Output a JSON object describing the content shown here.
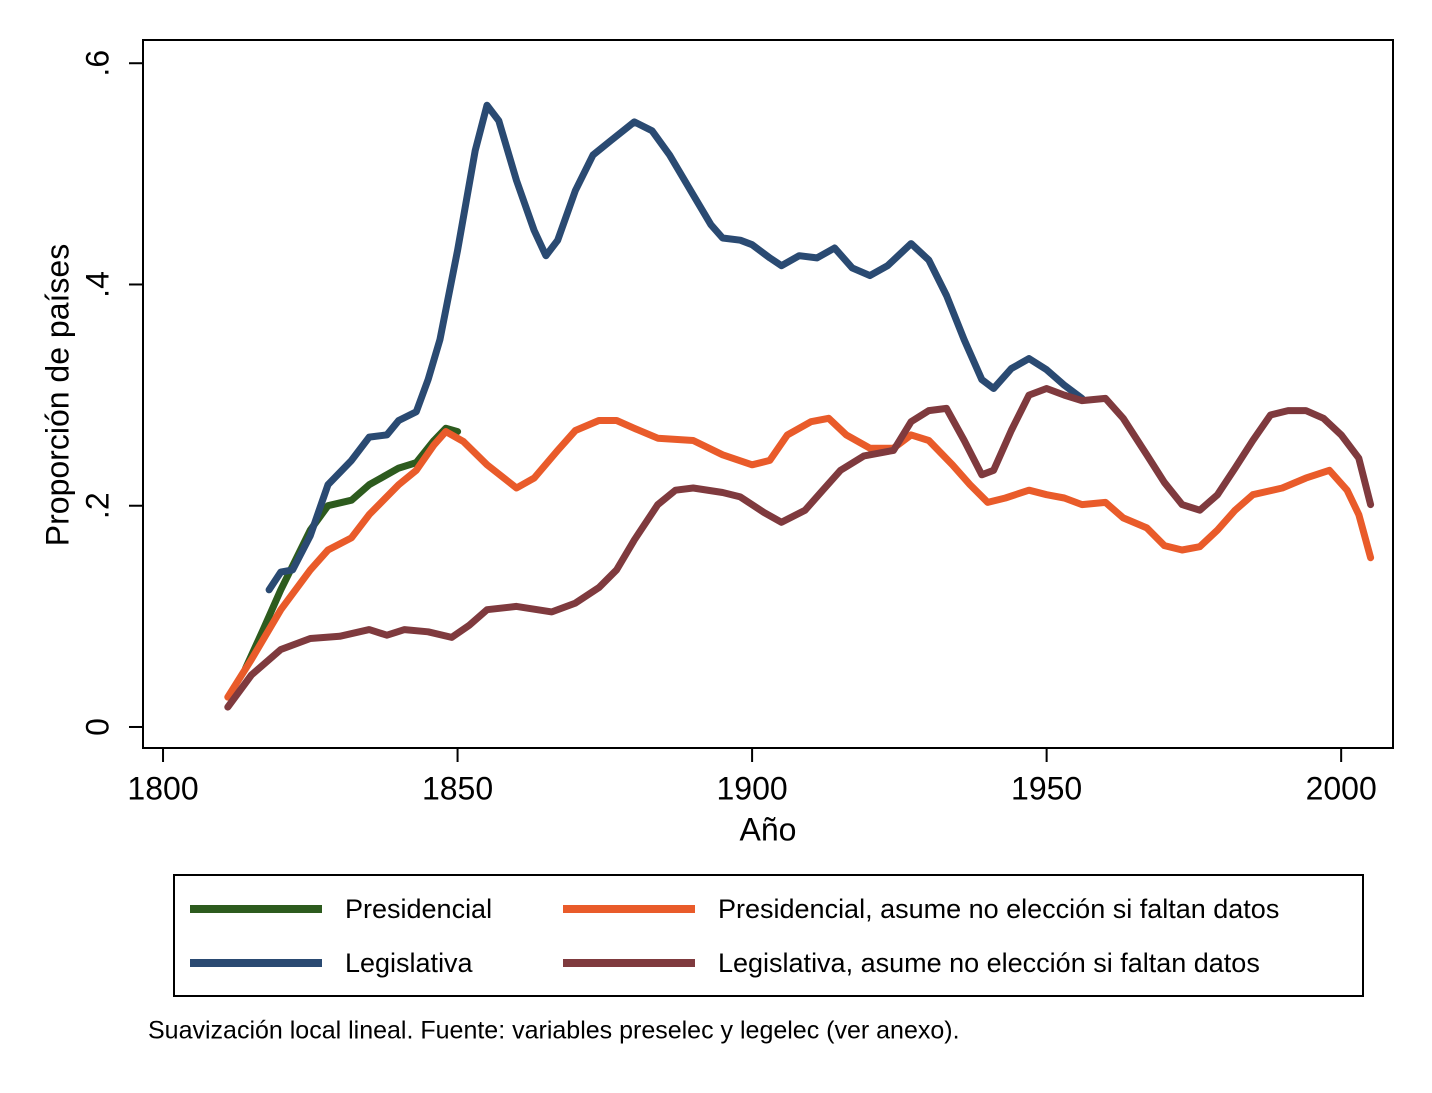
{
  "chart_data": {
    "type": "line",
    "xlabel": "Año",
    "ylabel": "Proporción de países",
    "note": "Suavización local lineal. Fuente: variables preselec y legelec (ver anexo).",
    "xlim": [
      1796.6,
      2008.8
    ],
    "ylim": [
      -0.019,
      0.621
    ],
    "xticks": [
      1800,
      1850,
      1900,
      1950,
      2000
    ],
    "yticks": [
      {
        "value": 0,
        "label": "0"
      },
      {
        "value": 0.2,
        "label": ".2"
      },
      {
        "value": 0.4,
        "label": ".4"
      },
      {
        "value": 0.6,
        "label": ".6"
      }
    ],
    "series": [
      {
        "name": "Presidencial",
        "color": "#2d5b1e",
        "x": [
          1814,
          1817,
          1820,
          1825,
          1828,
          1832,
          1835,
          1840,
          1843,
          1846,
          1848,
          1850
        ],
        "values": [
          0.053,
          0.088,
          0.124,
          0.178,
          0.2,
          0.205,
          0.219,
          0.234,
          0.239,
          0.259,
          0.27,
          0.267
        ]
      },
      {
        "name": "Legislativa",
        "color": "#2a4a72",
        "x": [
          1818,
          1820,
          1822,
          1825,
          1828,
          1832,
          1835,
          1838,
          1840,
          1843,
          1845,
          1847,
          1850,
          1853,
          1855,
          1857,
          1860,
          1863,
          1865,
          1867,
          1870,
          1873,
          1876,
          1880,
          1883,
          1886,
          1890,
          1893,
          1895,
          1898,
          1900,
          1903,
          1905,
          1908,
          1911,
          1914,
          1917,
          1920,
          1923,
          1927,
          1930,
          1933,
          1936,
          1939,
          1941,
          1944,
          1947,
          1950,
          1953,
          1956
        ],
        "values": [
          0.124,
          0.14,
          0.142,
          0.173,
          0.219,
          0.241,
          0.262,
          0.264,
          0.277,
          0.285,
          0.314,
          0.35,
          0.431,
          0.521,
          0.562,
          0.548,
          0.494,
          0.449,
          0.426,
          0.44,
          0.485,
          0.517,
          0.53,
          0.547,
          0.539,
          0.517,
          0.481,
          0.454,
          0.442,
          0.44,
          0.436,
          0.424,
          0.417,
          0.426,
          0.424,
          0.433,
          0.415,
          0.408,
          0.417,
          0.437,
          0.422,
          0.39,
          0.35,
          0.314,
          0.306,
          0.324,
          0.333,
          0.323,
          0.309,
          0.297
        ]
      },
      {
        "name": "Presidencial, asume no elección si faltan datos",
        "color": "#e95b2a",
        "x": [
          1811,
          1815,
          1820,
          1825,
          1828,
          1832,
          1835,
          1840,
          1843,
          1846,
          1848,
          1851,
          1855,
          1860,
          1863,
          1867,
          1870,
          1874,
          1877,
          1880,
          1884,
          1890,
          1895,
          1900,
          1903,
          1906,
          1910,
          1913,
          1916,
          1920,
          1924,
          1927,
          1930,
          1934,
          1937,
          1940,
          1943,
          1947,
          1950,
          1953,
          1956,
          1960,
          1963,
          1967,
          1970,
          1973,
          1976,
          1979,
          1982,
          1985,
          1990,
          1994,
          1998,
          2001,
          2003,
          2005
        ],
        "values": [
          0.027,
          0.061,
          0.106,
          0.142,
          0.16,
          0.171,
          0.192,
          0.219,
          0.232,
          0.255,
          0.267,
          0.258,
          0.237,
          0.216,
          0.225,
          0.25,
          0.268,
          0.277,
          0.277,
          0.27,
          0.261,
          0.259,
          0.246,
          0.237,
          0.241,
          0.264,
          0.276,
          0.279,
          0.264,
          0.252,
          0.252,
          0.264,
          0.259,
          0.237,
          0.219,
          0.203,
          0.207,
          0.214,
          0.21,
          0.207,
          0.201,
          0.203,
          0.189,
          0.18,
          0.164,
          0.16,
          0.163,
          0.178,
          0.196,
          0.21,
          0.216,
          0.225,
          0.232,
          0.214,
          0.192,
          0.153
        ]
      },
      {
        "name": "Legislativa, asume no elección si faltan datos",
        "color": "#7f3a3e",
        "x": [
          1811,
          1815,
          1820,
          1825,
          1830,
          1835,
          1838,
          1841,
          1845,
          1849,
          1852,
          1855,
          1860,
          1866,
          1870,
          1874,
          1877,
          1880,
          1884,
          1887,
          1890,
          1895,
          1898,
          1902,
          1905,
          1909,
          1912,
          1915,
          1919,
          1924,
          1927,
          1930,
          1933,
          1936,
          1939,
          1941,
          1944,
          1947,
          1950,
          1953,
          1956,
          1960,
          1963,
          1967,
          1970,
          1973,
          1976,
          1979,
          1982,
          1985,
          1988,
          1991,
          1994,
          1997,
          2000,
          2003,
          2005
        ],
        "values": [
          0.018,
          0.047,
          0.07,
          0.08,
          0.082,
          0.088,
          0.083,
          0.088,
          0.086,
          0.081,
          0.092,
          0.106,
          0.109,
          0.104,
          0.112,
          0.126,
          0.142,
          0.169,
          0.201,
          0.214,
          0.216,
          0.212,
          0.208,
          0.194,
          0.185,
          0.196,
          0.214,
          0.232,
          0.245,
          0.25,
          0.276,
          0.286,
          0.288,
          0.259,
          0.228,
          0.232,
          0.268,
          0.3,
          0.306,
          0.3,
          0.295,
          0.297,
          0.279,
          0.246,
          0.221,
          0.201,
          0.196,
          0.21,
          0.234,
          0.259,
          0.282,
          0.286,
          0.286,
          0.279,
          0.264,
          0.243,
          0.201
        ]
      }
    ]
  }
}
